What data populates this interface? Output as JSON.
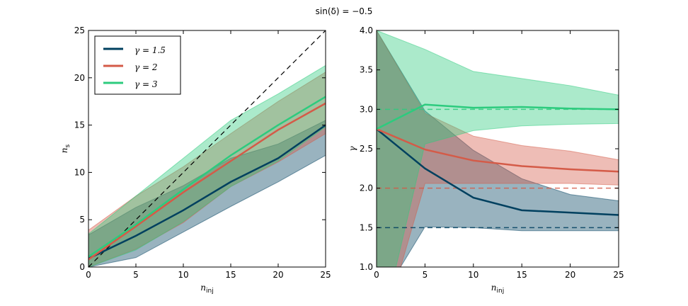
{
  "title": "sin(δ) = −0.5",
  "colors": {
    "g15": "#00405f",
    "g2": "#d45b48",
    "g3": "#2dcb7e"
  },
  "chart_data": [
    {
      "type": "line",
      "xlabel": "n_inj",
      "ylabel": "n_s",
      "xlim": [
        0,
        25
      ],
      "ylim": [
        0,
        25
      ],
      "xticks": [
        "0",
        "5",
        "10",
        "15",
        "20",
        "25"
      ],
      "yticks": [
        "0",
        "5",
        "10",
        "15",
        "20",
        "25"
      ],
      "legend": "top-left",
      "x": [
        0,
        5,
        10,
        15,
        20,
        25
      ],
      "reference": {
        "style": "dashed",
        "x": [
          0,
          25
        ],
        "y": [
          0,
          25
        ]
      },
      "series": [
        {
          "name": "γ = 1.5",
          "key": "g15",
          "values": [
            0.9,
            3.3,
            6.0,
            9.0,
            11.5,
            15.0
          ],
          "lower": [
            0,
            1.0,
            3.7,
            6.4,
            9.0,
            11.8
          ],
          "upper": [
            3.4,
            6.3,
            8.6,
            11.5,
            13.0,
            15.5
          ]
        },
        {
          "name": "γ = 2",
          "key": "g2",
          "values": [
            0.8,
            4.3,
            7.9,
            11.2,
            14.5,
            17.3
          ],
          "lower": [
            0,
            1.9,
            4.7,
            8.5,
            11.1,
            14.1
          ],
          "upper": [
            3.9,
            7.5,
            10.6,
            14.1,
            17.5,
            20.6
          ]
        },
        {
          "name": "γ = 3",
          "key": "g3",
          "values": [
            1.1,
            4.5,
            8.2,
            11.8,
            15.0,
            18.0
          ],
          "lower": [
            0,
            1.8,
            4.8,
            8.5,
            11.2,
            14.8
          ],
          "upper": [
            3.5,
            7.5,
            11.5,
            15.5,
            18.3,
            21.3
          ]
        }
      ]
    },
    {
      "type": "line",
      "xlabel": "n_inj",
      "ylabel": "γ",
      "xlim": [
        0,
        25
      ],
      "ylim": [
        1.0,
        4.0
      ],
      "xticks": [
        "0",
        "5",
        "10",
        "15",
        "20",
        "25"
      ],
      "yticks": [
        "1.0",
        "1.5",
        "2.0",
        "2.5",
        "3.0",
        "3.5",
        "4.0"
      ],
      "x": [
        0,
        5,
        10,
        15,
        20,
        25
      ],
      "series": [
        {
          "key": "g15",
          "truth": 1.5,
          "values": [
            2.75,
            2.25,
            1.88,
            1.72,
            1.69,
            1.66
          ],
          "lower": [
            0.5,
            1.51,
            1.5,
            1.46,
            1.46,
            1.46
          ],
          "upper": [
            4.0,
            2.98,
            2.48,
            2.12,
            1.92,
            1.84
          ]
        },
        {
          "key": "g2",
          "truth": 2.0,
          "values": [
            2.75,
            2.49,
            2.35,
            2.28,
            2.24,
            2.21
          ],
          "lower": [
            -0.05,
            2.06,
            2.06,
            2.06,
            2.06,
            2.04
          ],
          "upper": [
            4.0,
            2.95,
            2.66,
            2.54,
            2.47,
            2.36
          ]
        },
        {
          "key": "g3",
          "truth": 3.0,
          "values": [
            2.75,
            3.06,
            3.02,
            3.03,
            3.01,
            3.0
          ],
          "lower": [
            -0.04,
            2.56,
            2.73,
            2.79,
            2.81,
            2.82
          ],
          "upper": [
            4.0,
            3.76,
            3.48,
            3.39,
            3.3,
            3.18
          ]
        }
      ]
    }
  ]
}
